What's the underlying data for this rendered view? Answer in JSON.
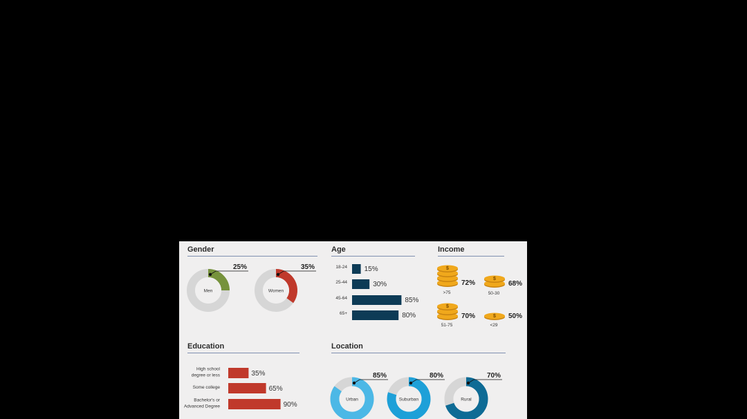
{
  "colors": {
    "gender_men": "#76923c",
    "gender_women": "#c0392b",
    "age": "#0d3b56",
    "education": "#c0392b",
    "loc_urban": "#4cb8e6",
    "loc_suburban": "#1ea0d8",
    "loc_rural": "#0e6b95",
    "track": "#d6d6d6",
    "coin": "#f0a81c"
  },
  "chart_data": [
    {
      "type": "pie",
      "title": "Gender",
      "series": [
        {
          "name": "Men",
          "value": 25,
          "label": "25%"
        },
        {
          "name": "Women",
          "value": 35,
          "label": "35%"
        }
      ]
    },
    {
      "type": "bar",
      "title": "Age",
      "categories": [
        "18-24",
        "25-44",
        "45-64",
        "65+"
      ],
      "values": [
        15,
        30,
        85,
        80
      ],
      "labels": [
        "15%",
        "30%",
        "85%",
        "80%"
      ]
    },
    {
      "type": "table",
      "title": "Income",
      "items": [
        {
          "name": ">75",
          "value": 72,
          "label": "72%",
          "stack": 4
        },
        {
          "name": "50-30",
          "value": 68,
          "label": "68%",
          "stack": 2
        },
        {
          "name": "51-75",
          "value": 70,
          "label": "70%",
          "stack": 3
        },
        {
          "name": "<29",
          "value": 50,
          "label": "50%",
          "stack": 1
        }
      ]
    },
    {
      "type": "bar",
      "title": "Education",
      "categories": [
        [
          "High school",
          "degree or less"
        ],
        [
          "Some college"
        ],
        [
          "Bachelor's or",
          "Advanced Degree"
        ]
      ],
      "values": [
        35,
        65,
        90
      ],
      "labels": [
        "35%",
        "65%",
        "90%"
      ]
    },
    {
      "type": "pie",
      "title": "Location",
      "series": [
        {
          "name": "Urban",
          "value": 85,
          "label": "85%"
        },
        {
          "name": "Suburban",
          "value": 80,
          "label": "80%"
        },
        {
          "name": "Rural",
          "value": 70,
          "label": "70%"
        }
      ]
    }
  ]
}
